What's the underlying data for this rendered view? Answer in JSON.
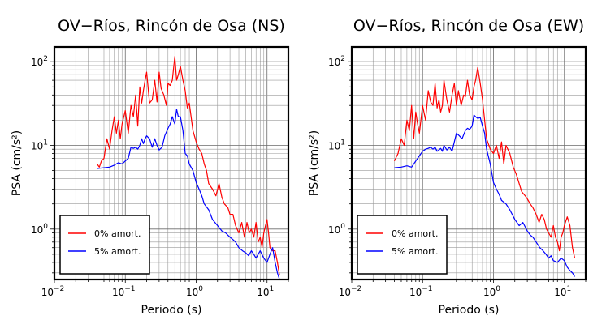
{
  "chart_data": [
    {
      "type": "line",
      "title": "OV−Ríos, Rincón de Osa (NS)",
      "xlabel": "Periodo (s)",
      "ylabel": "PSA (cm/s²)",
      "xscale": "log",
      "yscale": "log",
      "xlim": [
        0.01,
        20
      ],
      "ylim": [
        0.25,
        150
      ],
      "grid": true,
      "legend_position": "bottom-left",
      "series": [
        {
          "name": "0% amort.",
          "color": "#ff0000",
          "x": [
            0.04,
            0.043,
            0.046,
            0.05,
            0.055,
            0.06,
            0.065,
            0.07,
            0.075,
            0.08,
            0.085,
            0.09,
            0.1,
            0.11,
            0.12,
            0.13,
            0.14,
            0.15,
            0.16,
            0.17,
            0.18,
            0.19,
            0.2,
            0.22,
            0.24,
            0.26,
            0.28,
            0.3,
            0.32,
            0.35,
            0.38,
            0.4,
            0.43,
            0.46,
            0.5,
            0.53,
            0.56,
            0.6,
            0.65,
            0.7,
            0.75,
            0.8,
            0.9,
            1.0,
            1.1,
            1.2,
            1.3,
            1.4,
            1.5,
            1.7,
            1.9,
            2.1,
            2.3,
            2.5,
            2.8,
            3.0,
            3.3,
            3.6,
            4.0,
            4.4,
            4.8,
            5.2,
            5.6,
            6.0,
            6.5,
            7.0,
            7.5,
            8.0,
            8.5,
            9.0,
            9.5,
            10,
            10.5,
            11,
            12,
            13,
            14,
            15
          ],
          "y": [
            6.0,
            5.5,
            6.5,
            7.0,
            12,
            9.0,
            15,
            22,
            14,
            20,
            12,
            18,
            26,
            14,
            30,
            22,
            40,
            17,
            50,
            32,
            45,
            60,
            75,
            32,
            35,
            60,
            33,
            75,
            48,
            40,
            30,
            55,
            52,
            60,
            115,
            60,
            70,
            88,
            60,
            45,
            28,
            32,
            15,
            11,
            9.0,
            8.0,
            6.0,
            5.0,
            3.5,
            3.0,
            2.5,
            3.5,
            2.4,
            2.0,
            1.8,
            1.5,
            1.5,
            1.1,
            0.9,
            1.2,
            0.8,
            1.2,
            0.9,
            1.0,
            0.8,
            1.2,
            0.7,
            0.8,
            0.6,
            0.9,
            1.1,
            1.3,
            0.9,
            0.6,
            0.55,
            0.55,
            0.4,
            0.28
          ]
        },
        {
          "name": "5% amort.",
          "color": "#0000ff",
          "x": [
            0.04,
            0.05,
            0.06,
            0.07,
            0.08,
            0.09,
            0.1,
            0.11,
            0.12,
            0.13,
            0.14,
            0.15,
            0.16,
            0.17,
            0.18,
            0.19,
            0.2,
            0.22,
            0.24,
            0.26,
            0.28,
            0.3,
            0.33,
            0.36,
            0.4,
            0.43,
            0.46,
            0.5,
            0.53,
            0.56,
            0.6,
            0.65,
            0.7,
            0.75,
            0.8,
            0.9,
            1.0,
            1.1,
            1.2,
            1.3,
            1.5,
            1.7,
            2.0,
            2.3,
            2.6,
            3.0,
            3.3,
            3.6,
            4.0,
            4.5,
            5.0,
            5.5,
            6.0,
            6.5,
            7.0,
            8.0,
            9.0,
            10,
            11,
            12,
            13,
            14,
            15
          ],
          "y": [
            5.3,
            5.4,
            5.5,
            5.8,
            6.2,
            6.0,
            6.5,
            7.0,
            9.5,
            9.2,
            9.5,
            9.0,
            10.0,
            12.0,
            10.5,
            12.0,
            13.0,
            12.0,
            9.5,
            12.0,
            10.0,
            8.8,
            9.5,
            13.0,
            16.0,
            18.0,
            22.0,
            18.0,
            27.0,
            22.0,
            22.0,
            15.0,
            8.0,
            7.5,
            6.0,
            5.0,
            3.6,
            3.0,
            2.5,
            2.0,
            1.7,
            1.3,
            1.1,
            0.95,
            0.9,
            0.8,
            0.75,
            0.7,
            0.6,
            0.55,
            0.52,
            0.48,
            0.55,
            0.5,
            0.45,
            0.55,
            0.45,
            0.4,
            0.5,
            0.6,
            0.4,
            0.3,
            0.25
          ]
        }
      ]
    },
    {
      "type": "line",
      "title": "OV−Ríos, Rincón de Osa (EW)",
      "xlabel": "Periodo (s)",
      "ylabel": "PSA (cm/s²)",
      "xscale": "log",
      "yscale": "log",
      "xlim": [
        0.01,
        20
      ],
      "ylim": [
        0.25,
        150
      ],
      "grid": true,
      "legend_position": "bottom-left",
      "series": [
        {
          "name": "0% amort.",
          "color": "#ff0000",
          "x": [
            0.04,
            0.045,
            0.05,
            0.055,
            0.06,
            0.065,
            0.07,
            0.075,
            0.08,
            0.085,
            0.09,
            0.1,
            0.11,
            0.12,
            0.13,
            0.14,
            0.15,
            0.16,
            0.17,
            0.18,
            0.19,
            0.2,
            0.22,
            0.24,
            0.26,
            0.28,
            0.3,
            0.32,
            0.35,
            0.38,
            0.4,
            0.43,
            0.46,
            0.5,
            0.53,
            0.56,
            0.6,
            0.65,
            0.7,
            0.75,
            0.8,
            0.9,
            1.0,
            1.1,
            1.2,
            1.3,
            1.4,
            1.5,
            1.7,
            1.9,
            2.1,
            2.3,
            2.5,
            2.8,
            3.0,
            3.3,
            3.6,
            4.0,
            4.4,
            4.8,
            5.2,
            5.6,
            6.0,
            6.5,
            7.0,
            7.5,
            8.0,
            8.5,
            9.0,
            9.5,
            10,
            11,
            12,
            13,
            14
          ],
          "y": [
            6.5,
            8.0,
            12,
            10,
            20,
            15,
            30,
            12,
            25,
            18,
            14,
            30,
            20,
            45,
            33,
            30,
            55,
            28,
            35,
            25,
            30,
            60,
            35,
            25,
            40,
            55,
            30,
            45,
            30,
            40,
            38,
            60,
            40,
            35,
            50,
            60,
            85,
            55,
            35,
            20,
            12,
            9,
            8,
            10,
            7,
            11,
            6,
            10,
            8,
            5.5,
            4.5,
            3.5,
            2.8,
            2.5,
            2.3,
            2.0,
            1.8,
            1.5,
            1.2,
            1.5,
            1.3,
            1.0,
            0.9,
            0.8,
            1.1,
            0.8,
            0.7,
            0.55,
            0.8,
            0.9,
            1.1,
            1.4,
            1.1,
            0.6,
            0.45
          ]
        },
        {
          "name": "5% amort.",
          "color": "#0000ff",
          "x": [
            0.04,
            0.05,
            0.06,
            0.07,
            0.08,
            0.09,
            0.1,
            0.11,
            0.12,
            0.13,
            0.14,
            0.15,
            0.16,
            0.17,
            0.18,
            0.19,
            0.2,
            0.22,
            0.24,
            0.26,
            0.28,
            0.3,
            0.33,
            0.36,
            0.4,
            0.43,
            0.46,
            0.5,
            0.53,
            0.56,
            0.6,
            0.65,
            0.7,
            0.75,
            0.8,
            0.9,
            1.0,
            1.1,
            1.2,
            1.3,
            1.5,
            1.7,
            2.0,
            2.3,
            2.6,
            3.0,
            3.3,
            3.6,
            4.0,
            4.5,
            5.0,
            5.5,
            6.0,
            6.5,
            7.0,
            8.0,
            9.0,
            10,
            11,
            12,
            13,
            14
          ],
          "y": [
            5.4,
            5.5,
            5.7,
            5.5,
            6.5,
            7.5,
            8.5,
            9.0,
            9.2,
            9.5,
            9.0,
            9.5,
            8.5,
            8.8,
            9.2,
            8.5,
            10.0,
            8.8,
            9.5,
            8.5,
            11.0,
            14.0,
            13.0,
            12.0,
            15.0,
            16.0,
            15.5,
            17.0,
            23.0,
            22.0,
            21.0,
            21.5,
            17.0,
            14.0,
            9.0,
            6.0,
            3.6,
            3.0,
            2.6,
            2.2,
            2.0,
            1.7,
            1.3,
            1.1,
            1.2,
            0.95,
            0.85,
            0.8,
            0.7,
            0.6,
            0.55,
            0.5,
            0.45,
            0.48,
            0.42,
            0.4,
            0.45,
            0.42,
            0.35,
            0.32,
            0.3,
            0.27
          ]
        }
      ]
    }
  ]
}
